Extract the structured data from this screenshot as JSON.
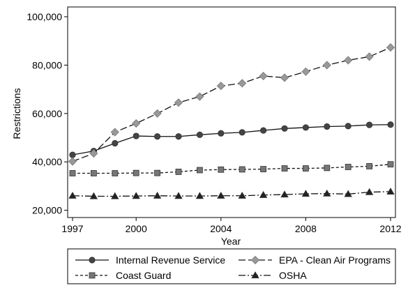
{
  "chart_data": {
    "type": "line",
    "xlabel": "Year",
    "ylabel": "Restrictions",
    "xlim": [
      1997,
      2012
    ],
    "ylim": [
      17000,
      100000
    ],
    "x_ticks": [
      1997,
      2000,
      2004,
      2008,
      2012
    ],
    "x_tick_labels": [
      "1997",
      "2000",
      "2004",
      "2008",
      "2012"
    ],
    "y_ticks": [
      20000,
      40000,
      60000,
      80000,
      100000
    ],
    "y_tick_labels": [
      "20,000",
      "40,000",
      "60,000",
      "80,000",
      "100,000"
    ],
    "grid": false,
    "legend_position": "bottom",
    "x": [
      1997,
      1998,
      1999,
      2000,
      2001,
      2002,
      2003,
      2004,
      2005,
      2006,
      2007,
      2008,
      2009,
      2010,
      2011,
      2012
    ],
    "series": [
      {
        "name": "Internal Revenue Service",
        "marker": "circle",
        "line_style": "solid",
        "color": "#444444",
        "values": [
          42900,
          44500,
          47700,
          50700,
          50500,
          50500,
          51200,
          51800,
          52200,
          53000,
          53800,
          54200,
          54600,
          54800,
          55300,
          55400
        ]
      },
      {
        "name": "EPA - Clean Air Programs",
        "marker": "diamond",
        "line_style": "long-dash",
        "color": "#999999",
        "values": [
          40200,
          43500,
          52300,
          55900,
          60000,
          64500,
          67000,
          71400,
          72500,
          75500,
          74800,
          77300,
          80000,
          82000,
          83500,
          87300
        ]
      },
      {
        "name": "Coast Guard",
        "marker": "square",
        "line_style": "short-dash",
        "color": "#777777",
        "values": [
          35300,
          35300,
          35300,
          35400,
          35400,
          35900,
          36600,
          36800,
          36900,
          37000,
          37300,
          37300,
          37500,
          37900,
          38200,
          39000
        ]
      },
      {
        "name": "OSHA",
        "marker": "triangle",
        "line_style": "dash-dot",
        "color": "#222222",
        "values": [
          26000,
          25800,
          25800,
          25900,
          26000,
          25900,
          25900,
          26000,
          26000,
          26300,
          26500,
          26800,
          26900,
          26700,
          27500,
          27700
        ]
      }
    ]
  }
}
